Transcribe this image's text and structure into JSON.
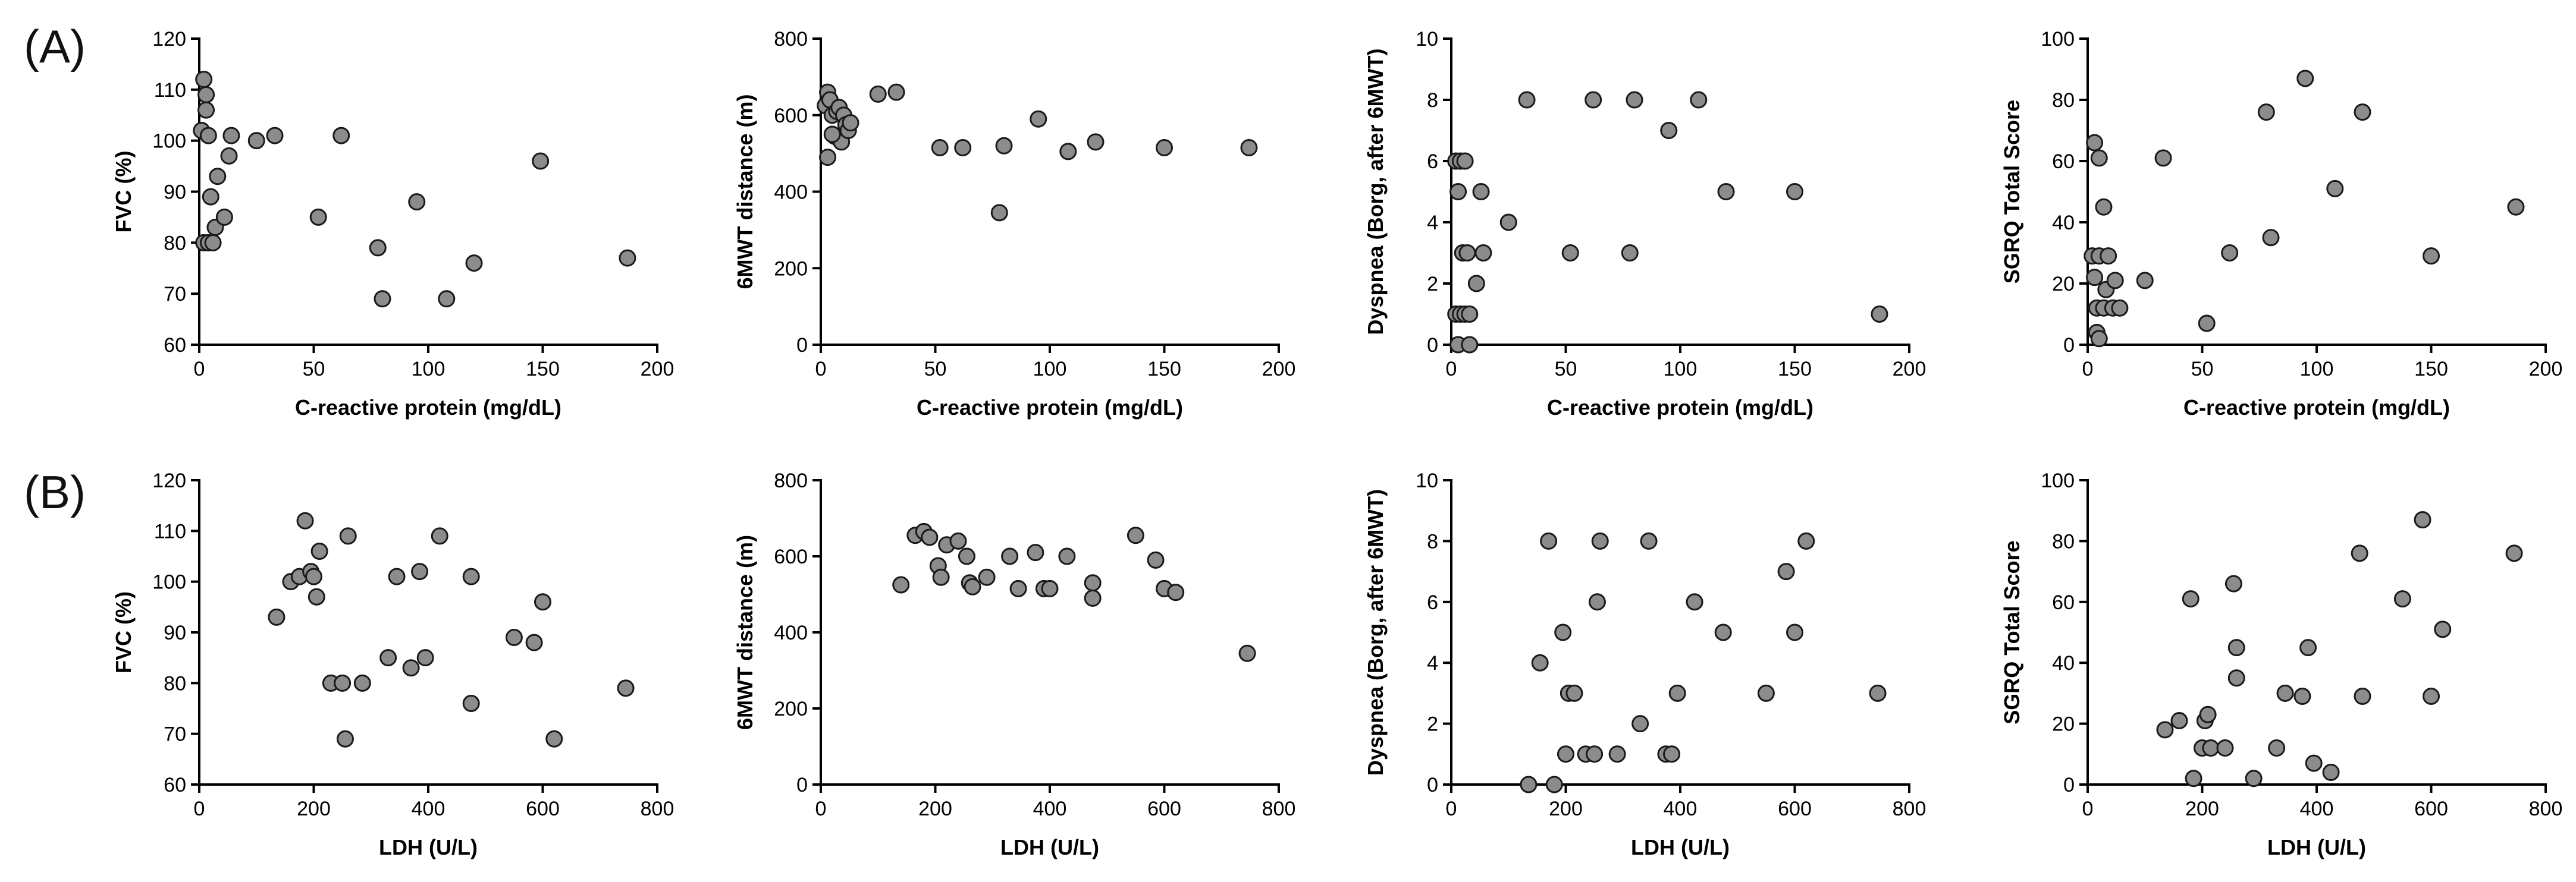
{
  "figure": {
    "panel_labels": [
      "(A)",
      "(B)"
    ]
  },
  "chart_data": [
    {
      "type": "scatter",
      "row": "A",
      "panel": 1,
      "xlabel": "C-reactive protein (mg/dL)",
      "ylabel": "FVC (%)",
      "xlim": [
        0,
        200
      ],
      "ylim": [
        60,
        120
      ],
      "xticks": [
        0,
        50,
        100,
        150,
        200
      ],
      "yticks": [
        60,
        70,
        80,
        90,
        100,
        110,
        120
      ],
      "points": [
        [
          1,
          102
        ],
        [
          2,
          112
        ],
        [
          3,
          109
        ],
        [
          3,
          106
        ],
        [
          4,
          101
        ],
        [
          2,
          80
        ],
        [
          4,
          80
        ],
        [
          6,
          80
        ],
        [
          5,
          89
        ],
        [
          7,
          83
        ],
        [
          8,
          93
        ],
        [
          11,
          85
        ],
        [
          13,
          97
        ],
        [
          14,
          101
        ],
        [
          25,
          100
        ],
        [
          33,
          101
        ],
        [
          62,
          101
        ],
        [
          52,
          85
        ],
        [
          78,
          79
        ],
        [
          80,
          69
        ],
        [
          95,
          88
        ],
        [
          108,
          69
        ],
        [
          120,
          76
        ],
        [
          149,
          96
        ],
        [
          187,
          77
        ]
      ]
    },
    {
      "type": "scatter",
      "row": "A",
      "panel": 2,
      "xlabel": "C-reactive protein (mg/dL)",
      "ylabel": "6MWT distance (m)",
      "xlim": [
        0,
        200
      ],
      "ylim": [
        0,
        800
      ],
      "xticks": [
        0,
        50,
        100,
        150,
        200
      ],
      "yticks": [
        0,
        200,
        400,
        600,
        800
      ],
      "points": [
        [
          2,
          625
        ],
        [
          3,
          660
        ],
        [
          4,
          640
        ],
        [
          5,
          600
        ],
        [
          6,
          545
        ],
        [
          7,
          610
        ],
        [
          8,
          620
        ],
        [
          9,
          530
        ],
        [
          10,
          600
        ],
        [
          11,
          575
        ],
        [
          12,
          560
        ],
        [
          13,
          580
        ],
        [
          3,
          490
        ],
        [
          5,
          550
        ],
        [
          25,
          655
        ],
        [
          33,
          660
        ],
        [
          52,
          515
        ],
        [
          62,
          515
        ],
        [
          78,
          345
        ],
        [
          80,
          520
        ],
        [
          95,
          590
        ],
        [
          108,
          505
        ],
        [
          120,
          530
        ],
        [
          150,
          515
        ],
        [
          187,
          515
        ]
      ]
    },
    {
      "type": "scatter",
      "row": "A",
      "panel": 3,
      "xlabel": "C-reactive protein (mg/dL)",
      "ylabel": "Dyspnea (Borg, after 6MWT)",
      "xlim": [
        0,
        200
      ],
      "ylim": [
        0,
        10
      ],
      "xticks": [
        0,
        50,
        100,
        150,
        200
      ],
      "yticks": [
        0,
        2,
        4,
        6,
        8,
        10
      ],
      "points": [
        [
          2,
          6
        ],
        [
          4,
          6
        ],
        [
          6,
          6
        ],
        [
          3,
          5
        ],
        [
          5,
          3
        ],
        [
          7,
          3
        ],
        [
          2,
          1
        ],
        [
          4,
          1
        ],
        [
          6,
          1
        ],
        [
          8,
          1
        ],
        [
          3,
          0
        ],
        [
          8,
          0
        ],
        [
          11,
          2
        ],
        [
          13,
          5
        ],
        [
          14,
          3
        ],
        [
          25,
          4
        ],
        [
          33,
          8
        ],
        [
          52,
          3
        ],
        [
          62,
          8
        ],
        [
          78,
          3
        ],
        [
          80,
          8
        ],
        [
          95,
          7
        ],
        [
          108,
          8
        ],
        [
          120,
          5
        ],
        [
          150,
          5
        ],
        [
          187,
          1
        ]
      ]
    },
    {
      "type": "scatter",
      "row": "A",
      "panel": 4,
      "xlabel": "C-reactive protein (mg/dL)",
      "ylabel": "SGRQ Total Score",
      "xlim": [
        0,
        200
      ],
      "ylim": [
        0,
        100
      ],
      "xticks": [
        0,
        50,
        100,
        150,
        200
      ],
      "yticks": [
        0,
        20,
        40,
        60,
        80,
        100
      ],
      "points": [
        [
          3,
          66
        ],
        [
          5,
          61
        ],
        [
          7,
          45
        ],
        [
          2,
          29
        ],
        [
          5,
          29
        ],
        [
          9,
          29
        ],
        [
          3,
          22
        ],
        [
          8,
          18
        ],
        [
          12,
          21
        ],
        [
          4,
          12
        ],
        [
          7,
          12
        ],
        [
          11,
          12
        ],
        [
          14,
          12
        ],
        [
          4,
          4
        ],
        [
          5,
          2
        ],
        [
          25,
          21
        ],
        [
          33,
          61
        ],
        [
          52,
          7
        ],
        [
          62,
          30
        ],
        [
          78,
          76
        ],
        [
          80,
          35
        ],
        [
          95,
          87
        ],
        [
          108,
          51
        ],
        [
          120,
          76
        ],
        [
          150,
          29
        ],
        [
          187,
          45
        ]
      ]
    },
    {
      "type": "scatter",
      "row": "B",
      "panel": 1,
      "xlabel": "LDH (U/L)",
      "ylabel": "FVC (%)",
      "xlim": [
        0,
        800
      ],
      "ylim": [
        60,
        120
      ],
      "xticks": [
        0,
        200,
        400,
        600,
        800
      ],
      "yticks": [
        60,
        70,
        80,
        90,
        100,
        110,
        120
      ],
      "points": [
        [
          135,
          93
        ],
        [
          160,
          100
        ],
        [
          175,
          101
        ],
        [
          185,
          112
        ],
        [
          195,
          102
        ],
        [
          200,
          101
        ],
        [
          205,
          97
        ],
        [
          210,
          106
        ],
        [
          230,
          80
        ],
        [
          250,
          80
        ],
        [
          255,
          69
        ],
        [
          260,
          109
        ],
        [
          285,
          80
        ],
        [
          330,
          85
        ],
        [
          345,
          101
        ],
        [
          370,
          83
        ],
        [
          385,
          102
        ],
        [
          395,
          85
        ],
        [
          420,
          109
        ],
        [
          475,
          101
        ],
        [
          475,
          76
        ],
        [
          550,
          89
        ],
        [
          585,
          88
        ],
        [
          600,
          96
        ],
        [
          620,
          69
        ],
        [
          745,
          79
        ]
      ]
    },
    {
      "type": "scatter",
      "row": "B",
      "panel": 2,
      "xlabel": "LDH (U/L)",
      "ylabel": "6MWT distance (m)",
      "xlim": [
        0,
        800
      ],
      "ylim": [
        0,
        800
      ],
      "xticks": [
        0,
        200,
        400,
        600,
        800
      ],
      "yticks": [
        0,
        200,
        400,
        600,
        800
      ],
      "points": [
        [
          140,
          525
        ],
        [
          165,
          655
        ],
        [
          180,
          665
        ],
        [
          190,
          650
        ],
        [
          205,
          575
        ],
        [
          210,
          545
        ],
        [
          220,
          630
        ],
        [
          240,
          640
        ],
        [
          255,
          600
        ],
        [
          260,
          530
        ],
        [
          265,
          520
        ],
        [
          290,
          545
        ],
        [
          330,
          600
        ],
        [
          345,
          515
        ],
        [
          375,
          610
        ],
        [
          390,
          515
        ],
        [
          400,
          515
        ],
        [
          430,
          600
        ],
        [
          475,
          530
        ],
        [
          475,
          490
        ],
        [
          550,
          655
        ],
        [
          585,
          590
        ],
        [
          600,
          515
        ],
        [
          620,
          505
        ],
        [
          745,
          345
        ]
      ]
    },
    {
      "type": "scatter",
      "row": "B",
      "panel": 3,
      "xlabel": "LDH (U/L)",
      "ylabel": "Dyspnea (Borg, after 6MWT)",
      "xlim": [
        0,
        800
      ],
      "ylim": [
        0,
        10
      ],
      "xticks": [
        0,
        200,
        400,
        600,
        800
      ],
      "yticks": [
        0,
        2,
        4,
        6,
        8,
        10
      ],
      "points": [
        [
          135,
          0
        ],
        [
          155,
          4
        ],
        [
          170,
          8
        ],
        [
          180,
          0
        ],
        [
          195,
          5
        ],
        [
          200,
          1
        ],
        [
          205,
          3
        ],
        [
          215,
          3
        ],
        [
          235,
          1
        ],
        [
          250,
          1
        ],
        [
          255,
          6
        ],
        [
          260,
          8
        ],
        [
          290,
          1
        ],
        [
          330,
          2
        ],
        [
          345,
          8
        ],
        [
          375,
          1
        ],
        [
          385,
          1
        ],
        [
          395,
          3
        ],
        [
          425,
          6
        ],
        [
          475,
          5
        ],
        [
          550,
          3
        ],
        [
          585,
          7
        ],
        [
          600,
          5
        ],
        [
          620,
          8
        ],
        [
          745,
          3
        ]
      ]
    },
    {
      "type": "scatter",
      "row": "B",
      "panel": 4,
      "xlabel": "LDH (U/L)",
      "ylabel": "SGRQ Total Score",
      "xlim": [
        0,
        800
      ],
      "ylim": [
        0,
        100
      ],
      "xticks": [
        0,
        200,
        400,
        600,
        800
      ],
      "yticks": [
        0,
        20,
        40,
        60,
        80,
        100
      ],
      "points": [
        [
          135,
          18
        ],
        [
          160,
          21
        ],
        [
          180,
          61
        ],
        [
          185,
          2
        ],
        [
          200,
          12
        ],
        [
          205,
          21
        ],
        [
          210,
          23
        ],
        [
          215,
          12
        ],
        [
          240,
          12
        ],
        [
          255,
          66
        ],
        [
          260,
          35
        ],
        [
          260,
          45
        ],
        [
          290,
          2
        ],
        [
          330,
          12
        ],
        [
          345,
          30
        ],
        [
          375,
          29
        ],
        [
          385,
          45
        ],
        [
          395,
          7
        ],
        [
          425,
          4
        ],
        [
          475,
          76
        ],
        [
          480,
          29
        ],
        [
          550,
          61
        ],
        [
          585,
          87
        ],
        [
          600,
          29
        ],
        [
          620,
          51
        ],
        [
          745,
          76
        ]
      ]
    }
  ]
}
